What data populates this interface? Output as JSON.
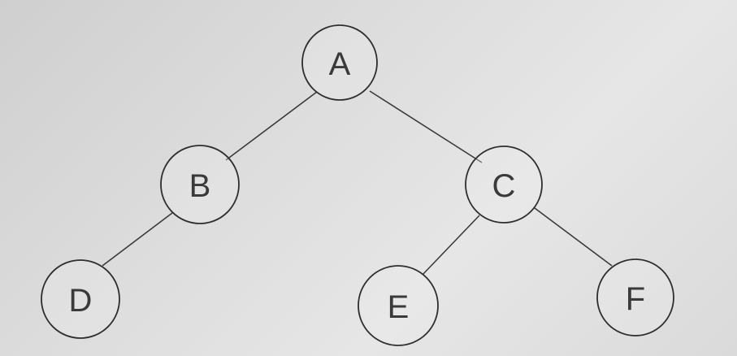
{
  "diagram": {
    "type": "binary-tree",
    "nodes": [
      {
        "id": "A",
        "label": "A"
      },
      {
        "id": "B",
        "label": "B"
      },
      {
        "id": "C",
        "label": "C"
      },
      {
        "id": "D",
        "label": "D"
      },
      {
        "id": "E",
        "label": "E"
      },
      {
        "id": "F",
        "label": "F"
      }
    ],
    "edges": [
      {
        "from": "A",
        "to": "B"
      },
      {
        "from": "A",
        "to": "C"
      },
      {
        "from": "B",
        "to": "D"
      },
      {
        "from": "C",
        "to": "E"
      },
      {
        "from": "C",
        "to": "F"
      }
    ]
  }
}
